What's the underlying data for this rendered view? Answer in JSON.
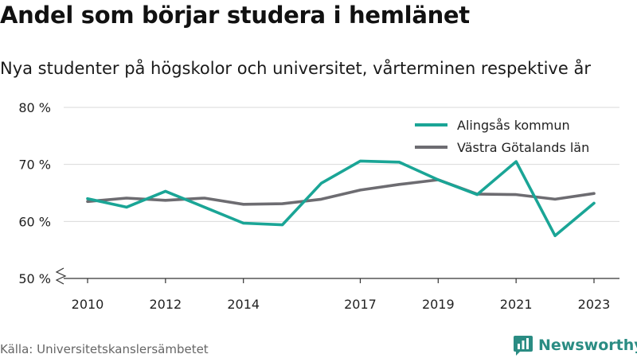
{
  "header": {
    "title": "Andel som börjar studera i hemlänet",
    "subtitle": "Nya studenter på högskolor och universitet, vårterminen respektive år"
  },
  "footer": {
    "source": "Källa: Universitetskanslersämbetet",
    "brand": "Newsworthy",
    "brand_icon": "newsworthy-logo-icon"
  },
  "chart_data": {
    "type": "line",
    "x": [
      2010,
      2011,
      2012,
      2013,
      2014,
      2015,
      2016,
      2017,
      2018,
      2019,
      2020,
      2021,
      2022,
      2023
    ],
    "x_ticks": [
      2010,
      2012,
      2014,
      2017,
      2019,
      2021,
      2023
    ],
    "y_ticks": [
      50,
      60,
      70,
      80
    ],
    "y_tick_labels": [
      "50 %",
      "60 %",
      "70 %",
      "80 %"
    ],
    "ylim": [
      50,
      80
    ],
    "axis_break": true,
    "grid": true,
    "legend_position": "top-right",
    "series": [
      {
        "name": "Alingsås kommun",
        "color": "#1aa596",
        "values": [
          64.0,
          62.5,
          65.3,
          62.5,
          59.7,
          59.4,
          66.7,
          70.6,
          70.4,
          67.3,
          64.7,
          70.5,
          57.5,
          63.2
        ]
      },
      {
        "name": "Västra Götalands län",
        "color": "#6d6c71",
        "values": [
          63.5,
          64.1,
          63.7,
          64.1,
          63.0,
          63.1,
          63.9,
          65.5,
          66.5,
          67.3,
          64.8,
          64.7,
          63.9,
          64.9
        ]
      }
    ]
  }
}
